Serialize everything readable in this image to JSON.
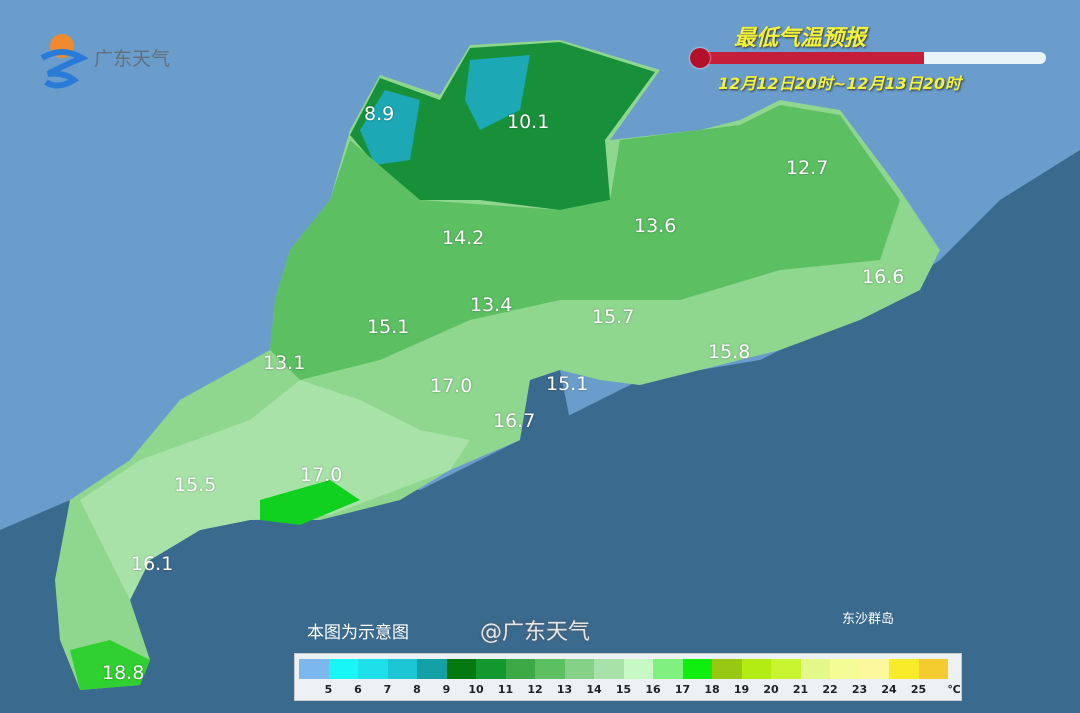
{
  "header": {
    "title": "最低气温预报",
    "time_range": "12月12日20时~12月13日20时",
    "thermometer_fill_fraction": 0.65,
    "logo_text": "广东天气"
  },
  "map": {
    "region": "广东",
    "note": "本图为示意图",
    "island_label": "东沙群岛",
    "values": [
      "8.9",
      "10.1",
      "12.7",
      "14.2",
      "13.6",
      "16.6",
      "13.4",
      "15.1",
      "15.7",
      "13.1",
      "15.8",
      "17.0",
      "15.1",
      "16.7",
      "15.5",
      "17.0",
      "16.1",
      "18.8"
    ]
  },
  "legend": {
    "ticks": [
      "5",
      "6",
      "7",
      "8",
      "9",
      "10",
      "11",
      "12",
      "13",
      "14",
      "15",
      "16",
      "17",
      "18",
      "19",
      "20",
      "21",
      "22",
      "23",
      "24",
      "25"
    ],
    "unit": "℃",
    "colors": [
      "#7cb8ee",
      "#18f6f6",
      "#1ee0ea",
      "#1cc6d4",
      "#13a0a6",
      "#067810",
      "#12982e",
      "#3ca846",
      "#5cbf62",
      "#86d188",
      "#a8e2a8",
      "#c8f8c4",
      "#80f080",
      "#10ee10",
      "#98c812",
      "#b2ec12",
      "#c8f430",
      "#e4f88a",
      "#f4fc96",
      "#fbf89e",
      "#f8ec2a",
      "#f4cc30"
    ]
  },
  "watermark": "@广东天气"
}
